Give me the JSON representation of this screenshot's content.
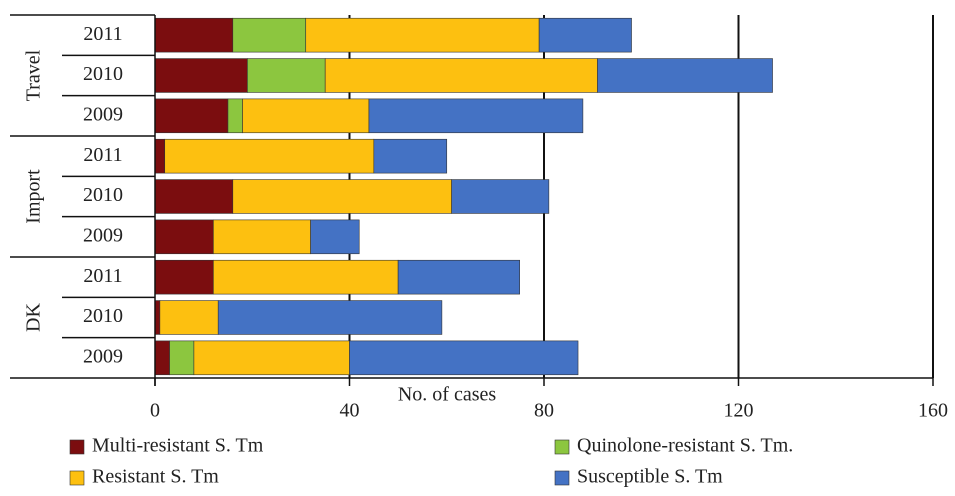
{
  "chart_data": {
    "type": "stacked-barh",
    "x_label": "No. of cases",
    "groups": [
      {
        "name": "Travel",
        "categories": [
          "2011",
          "2010",
          "2009"
        ]
      },
      {
        "name": "Import",
        "categories": [
          "2011",
          "2010",
          "2009"
        ]
      },
      {
        "name": "DK",
        "categories": [
          "2011",
          "2010",
          "2009"
        ]
      }
    ],
    "series": [
      {
        "name": "Multi-resistant S. Tm",
        "color": "#7b0d0f",
        "values": [
          16,
          19,
          15,
          2,
          16,
          12,
          12,
          1,
          3
        ]
      },
      {
        "name": "Quinolone-resistant S. Tm.",
        "color": "#8cc63f",
        "values": [
          15,
          16,
          3,
          0,
          0,
          0,
          0,
          0,
          5
        ]
      },
      {
        "name": "Resistant S. Tm",
        "color": "#fdc010",
        "values": [
          48,
          56,
          26,
          43,
          45,
          20,
          38,
          12,
          32
        ]
      },
      {
        "name": "Susceptible S. Tm",
        "color": "#4472c4",
        "values": [
          19,
          36,
          44,
          15,
          20,
          10,
          25,
          46,
          47
        ]
      }
    ],
    "xlim": [
      0,
      160
    ],
    "xticks": [
      0,
      40,
      80,
      120,
      160
    ],
    "grid": true,
    "legend": "bottom"
  }
}
